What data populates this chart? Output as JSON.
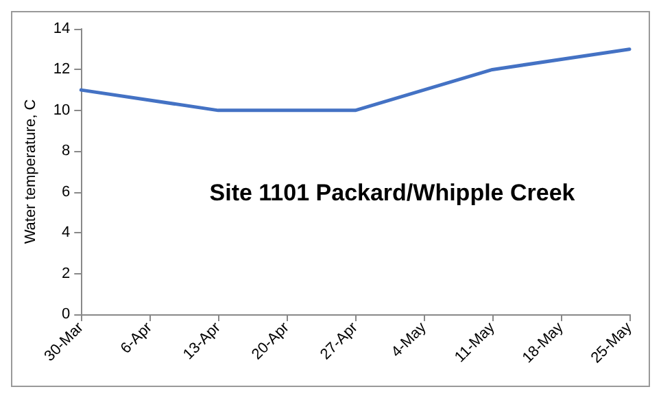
{
  "chart_data": {
    "type": "line",
    "title": "Site 1101 Packard/Whipple Creek",
    "ylabel": "Water temperature, C",
    "x": [
      "--03-30",
      "--04-13",
      "--04-27",
      "--05-11",
      "--05-25"
    ],
    "series": [
      {
        "color": "#4472c4",
        "values": [
          11,
          10,
          10,
          12,
          13
        ]
      }
    ],
    "xlim": [
      "--03-30",
      "--05-25"
    ],
    "xticks": [
      {
        "value": "--03-30",
        "label": "30-Mar"
      },
      {
        "value": "--04-06",
        "label": "6-Apr"
      },
      {
        "value": "--04-13",
        "label": "13-Apr"
      },
      {
        "value": "--04-20",
        "label": "20-Apr"
      },
      {
        "value": "--04-27",
        "label": "27-Apr"
      },
      {
        "value": "--05-04",
        "label": "4-May"
      },
      {
        "value": "--05-11",
        "label": "11-May"
      },
      {
        "value": "--05-18",
        "label": "18-May"
      },
      {
        "value": "--05-25",
        "label": "25-May"
      }
    ],
    "ylim": [
      0,
      14
    ],
    "yticks": [
      0,
      2,
      4,
      6,
      8,
      10,
      12,
      14
    ],
    "grid": false,
    "marker": "none",
    "line_style": "solid"
  }
}
